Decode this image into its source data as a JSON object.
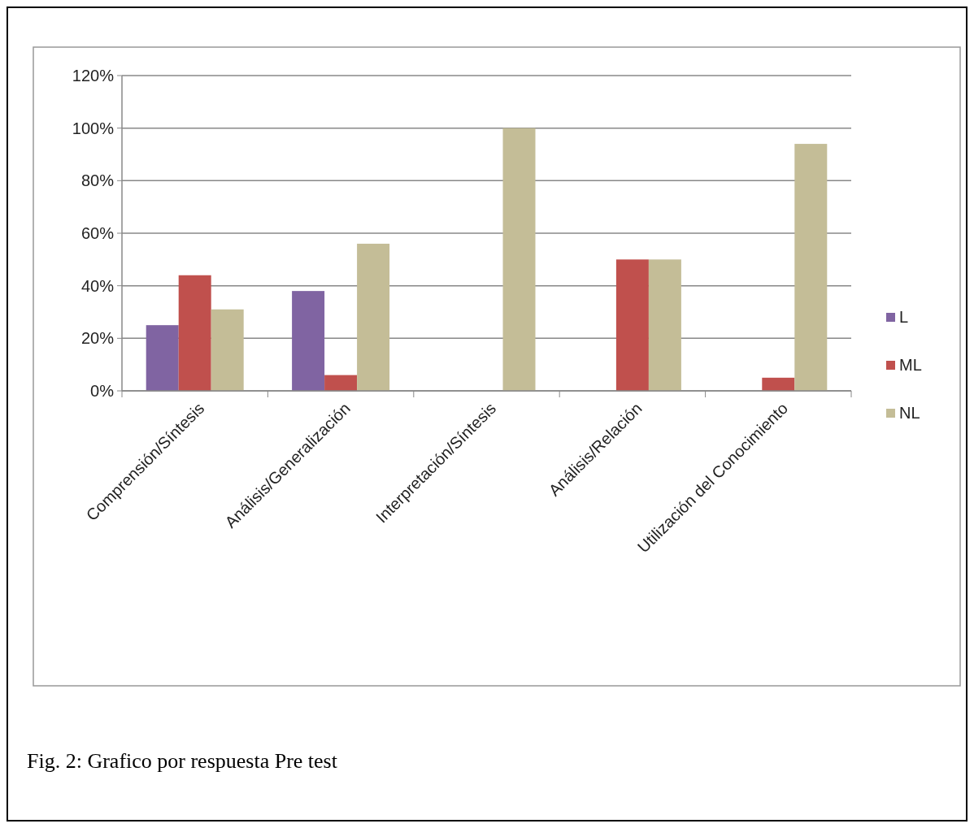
{
  "chart_data": {
    "type": "bar",
    "categories": [
      "Comprensión/Síntesis",
      "Análisis/Generalización",
      "Interpretación/Síntesis",
      "Análisis/Relación",
      "Utilización del Conocimiento"
    ],
    "series": [
      {
        "name": "L",
        "color": "#8064a2",
        "values": [
          25,
          38,
          0,
          0,
          0
        ]
      },
      {
        "name": "ML",
        "color": "#c0504d",
        "values": [
          44,
          6,
          0,
          50,
          5
        ]
      },
      {
        "name": "NL",
        "color": "#c4bd97",
        "values": [
          31,
          56,
          100,
          50,
          94
        ]
      }
    ],
    "ylim": [
      0,
      120
    ],
    "yticks": [
      {
        "value": 0,
        "label": "0%"
      },
      {
        "value": 20,
        "label": "20%"
      },
      {
        "value": 40,
        "label": "40%"
      },
      {
        "value": 60,
        "label": "60%"
      },
      {
        "value": 80,
        "label": "80%"
      },
      {
        "value": 100,
        "label": "100%"
      },
      {
        "value": 120,
        "label": "120%"
      }
    ],
    "grid": "y",
    "legend": "right",
    "annotations": [
      "Fig. 2: Grafico por respuesta Pre test"
    ]
  }
}
